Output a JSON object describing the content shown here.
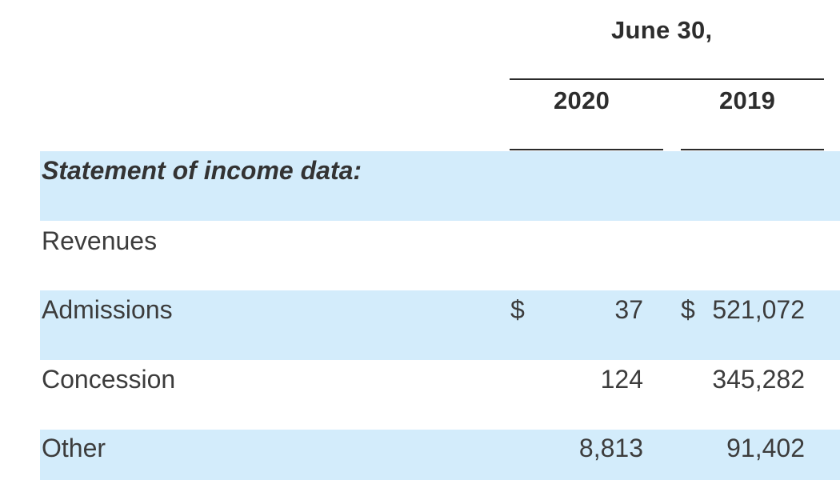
{
  "header": {
    "period": "June 30,",
    "col_2020": "2020",
    "col_2019": "2019"
  },
  "section_title": "Statement of income data:",
  "rows": [
    {
      "label": "Revenues",
      "v2020": "",
      "v2019": ""
    },
    {
      "label": "Admissions",
      "currency_2020": "$",
      "v2020": "37",
      "currency_2019": "$",
      "v2019": "521,072"
    },
    {
      "label": "Concession",
      "v2020": "124",
      "v2019": "345,282"
    },
    {
      "label": "Other",
      "v2020": "8,813",
      "v2019": "91,402"
    }
  ],
  "colors": {
    "band": "#d3ecfb",
    "text": "#3c3c3c",
    "rule": "#2a2a2a"
  }
}
